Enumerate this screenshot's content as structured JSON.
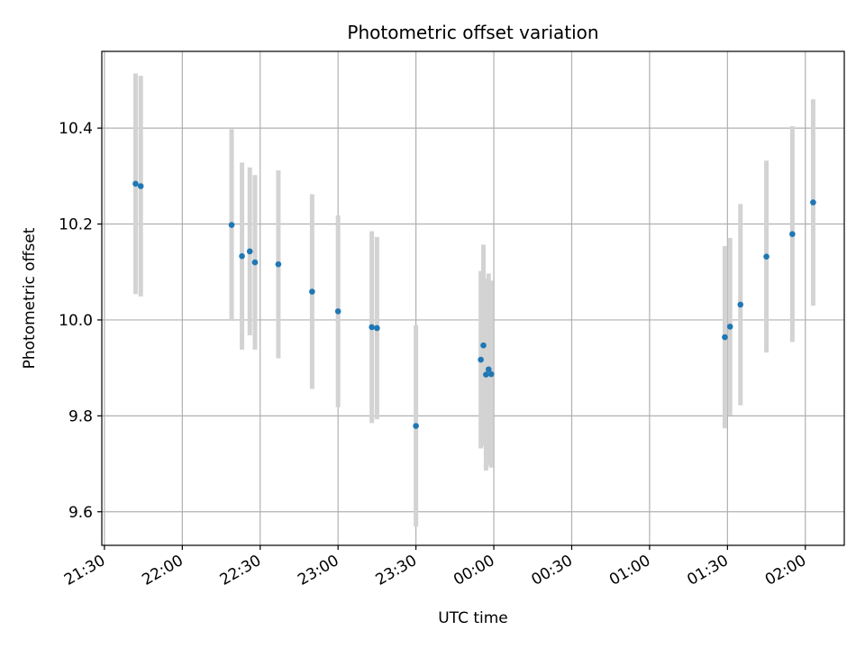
{
  "chart_data": {
    "type": "scatter",
    "title": "Photometric offset variation",
    "xlabel": "UTC time",
    "ylabel": "Photometric offset",
    "x_is_time": true,
    "xlim": [
      "21:29",
      "02:15"
    ],
    "ylim": [
      9.53,
      10.56
    ],
    "xticks": [
      "21:30",
      "22:00",
      "22:30",
      "23:00",
      "23:30",
      "00:00",
      "00:30",
      "01:00",
      "01:30",
      "02:00"
    ],
    "yticks": [
      9.6,
      9.8,
      10.0,
      10.2,
      10.4
    ],
    "ytick_labels": [
      "9.6",
      "9.8",
      "10.0",
      "10.2",
      "10.4"
    ],
    "grid": true,
    "marker_color": "#1f77b4",
    "errorbar_color": "#d3d3d3",
    "series": [
      {
        "points": [
          {
            "x": "21:42",
            "y": 10.284,
            "err": 0.23
          },
          {
            "x": "21:44",
            "y": 10.279,
            "err": 0.23
          },
          {
            "x": "22:19",
            "y": 10.198,
            "err": 0.2
          },
          {
            "x": "22:23",
            "y": 10.133,
            "err": 0.195
          },
          {
            "x": "22:26",
            "y": 10.143,
            "err": 0.175
          },
          {
            "x": "22:28",
            "y": 10.12,
            "err": 0.182
          },
          {
            "x": "22:37",
            "y": 10.116,
            "err": 0.196
          },
          {
            "x": "22:50",
            "y": 10.059,
            "err": 0.203
          },
          {
            "x": "23:00",
            "y": 10.018,
            "err": 0.2
          },
          {
            "x": "23:13",
            "y": 9.985,
            "err": 0.2
          },
          {
            "x": "23:15",
            "y": 9.983,
            "err": 0.19
          },
          {
            "x": "23:30",
            "y": 9.779,
            "err": 0.21
          },
          {
            "x": "23:55",
            "y": 9.917,
            "err": 0.185
          },
          {
            "x": "23:56",
            "y": 9.947,
            "err": 0.21
          },
          {
            "x": "23:57",
            "y": 9.886,
            "err": 0.2
          },
          {
            "x": "23:58",
            "y": 9.897,
            "err": 0.2
          },
          {
            "x": "23:59",
            "y": 9.887,
            "err": 0.195
          },
          {
            "x": "01:29",
            "y": 9.964,
            "err": 0.19
          },
          {
            "x": "01:31",
            "y": 9.986,
            "err": 0.185
          },
          {
            "x": "01:35",
            "y": 10.032,
            "err": 0.21
          },
          {
            "x": "01:45",
            "y": 10.132,
            "err": 0.2
          },
          {
            "x": "01:55",
            "y": 10.179,
            "err": 0.225
          },
          {
            "x": "02:03",
            "y": 10.245,
            "err": 0.215
          }
        ]
      }
    ]
  }
}
